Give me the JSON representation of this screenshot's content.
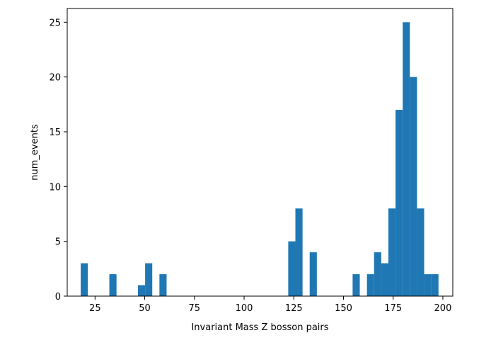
{
  "chart_data": {
    "type": "bar",
    "title": "",
    "xlabel": "Invariant Mass Z bosson pairs",
    "ylabel": "num_events",
    "xlim": [
      11.0,
      205.0
    ],
    "ylim": [
      0,
      26.25
    ],
    "xticks": [
      25,
      50,
      75,
      100,
      125,
      150,
      175,
      200
    ],
    "yticks": [
      0,
      5,
      10,
      15,
      20,
      25
    ],
    "grid": false,
    "legend": "none",
    "bar_color": "#1f77b4",
    "bin_width": 3.6,
    "bins": [
      {
        "x_start": 17.8,
        "value": 3
      },
      {
        "x_start": 32.2,
        "value": 2
      },
      {
        "x_start": 46.6,
        "value": 1
      },
      {
        "x_start": 50.2,
        "value": 3
      },
      {
        "x_start": 57.4,
        "value": 2
      },
      {
        "x_start": 122.2,
        "value": 5
      },
      {
        "x_start": 125.8,
        "value": 8
      },
      {
        "x_start": 133.0,
        "value": 4
      },
      {
        "x_start": 154.6,
        "value": 2
      },
      {
        "x_start": 161.8,
        "value": 2
      },
      {
        "x_start": 165.4,
        "value": 4
      },
      {
        "x_start": 169.0,
        "value": 3
      },
      {
        "x_start": 172.6,
        "value": 8
      },
      {
        "x_start": 176.2,
        "value": 17
      },
      {
        "x_start": 179.8,
        "value": 25
      },
      {
        "x_start": 183.4,
        "value": 20
      },
      {
        "x_start": 187.0,
        "value": 8
      },
      {
        "x_start": 190.6,
        "value": 2
      },
      {
        "x_start": 194.2,
        "value": 2
      }
    ]
  }
}
